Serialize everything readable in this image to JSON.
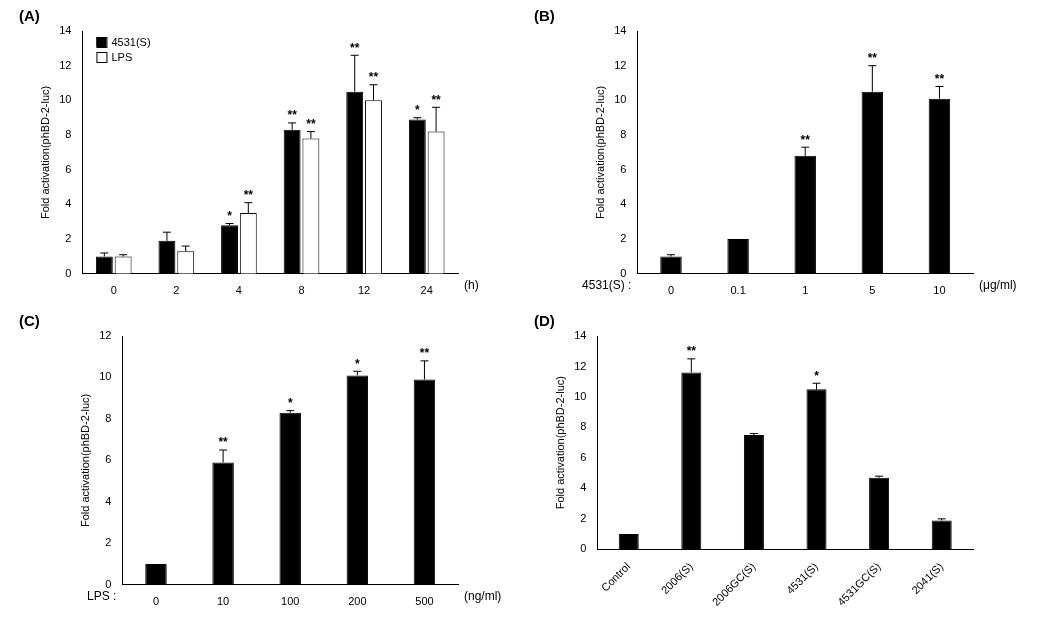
{
  "chart_data": [
    {
      "type": "bar",
      "panel_label": "(A)",
      "ylabel": "Fold activation(phBD-2-luc)",
      "categories": [
        "0",
        "2",
        "4",
        "8",
        "12",
        "24"
      ],
      "xlabel_right": "(h)",
      "ylim": [
        0,
        14
      ],
      "yticks": [
        0,
        2,
        4,
        6,
        8,
        10,
        12,
        14
      ],
      "grid": false,
      "legend": "upper left",
      "series": [
        {
          "name": "4531(S)",
          "color": "#000000",
          "values": [
            1,
            1.9,
            2.8,
            8.3,
            10.5,
            8.9
          ],
          "errors": [
            0.2,
            0.5,
            0.1,
            0.4,
            2.1,
            0.1
          ],
          "significance": [
            null,
            null,
            "*",
            "**",
            "**",
            "*"
          ]
        },
        {
          "name": "LPS",
          "color": "#ffffff",
          "values": [
            1,
            1.3,
            3.5,
            7.8,
            10,
            8.2
          ],
          "errors": [
            0.1,
            0.3,
            0.6,
            0.4,
            0.9,
            1.4
          ],
          "significance": [
            null,
            null,
            "**",
            "**",
            "**",
            "**"
          ]
        }
      ]
    },
    {
      "type": "bar",
      "panel_label": "(B)",
      "ylabel": "Fold activation(phBD-2-luc)",
      "categories": [
        "0",
        "0.1",
        "1",
        "5",
        "10"
      ],
      "xlabel_left": "4531(S) :",
      "xlabel_right": "(μg/ml)",
      "ylim": [
        0,
        14
      ],
      "yticks": [
        0,
        2,
        4,
        6,
        8,
        10,
        12,
        14
      ],
      "grid": false,
      "color": "#000000",
      "values": [
        1,
        2,
        6.8,
        10.5,
        10.1
      ],
      "errors": [
        0.1,
        0,
        0.5,
        1.5,
        0.7
      ],
      "significance": [
        null,
        null,
        "**",
        "**",
        "**"
      ]
    },
    {
      "type": "bar",
      "panel_label": "(C)",
      "ylabel": "Fold activation(phBD-2-luc)",
      "categories": [
        "0",
        "10",
        "100",
        "200",
        "500"
      ],
      "xlabel_left": "LPS :",
      "xlabel_right": "(ng/ml)",
      "ylim": [
        0,
        12
      ],
      "yticks": [
        0,
        2,
        4,
        6,
        8,
        10,
        12
      ],
      "grid": false,
      "color": "#000000",
      "values": [
        1,
        5.9,
        8.3,
        10.1,
        9.9
      ],
      "errors": [
        0,
        0.6,
        0.1,
        0.2,
        0.9
      ],
      "significance": [
        null,
        "**",
        "*",
        "*",
        "**"
      ]
    },
    {
      "type": "bar",
      "panel_label": "(D)",
      "ylabel": "Fold activation(phBD-2-luc)",
      "categories": [
        "Control",
        "2006(S)",
        "2006GC(S)",
        "4531(S)",
        "4531GC(S)",
        "2041(S)"
      ],
      "ylim": [
        0,
        14
      ],
      "yticks": [
        0,
        2,
        4,
        6,
        8,
        10,
        12,
        14
      ],
      "grid": false,
      "color": "#000000",
      "values": [
        1,
        11.6,
        7.5,
        10.5,
        4.7,
        1.9
      ],
      "errors": [
        0,
        0.9,
        0.1,
        0.4,
        0.1,
        0.1
      ],
      "significance": [
        null,
        "**",
        null,
        "*",
        null,
        null
      ]
    }
  ]
}
